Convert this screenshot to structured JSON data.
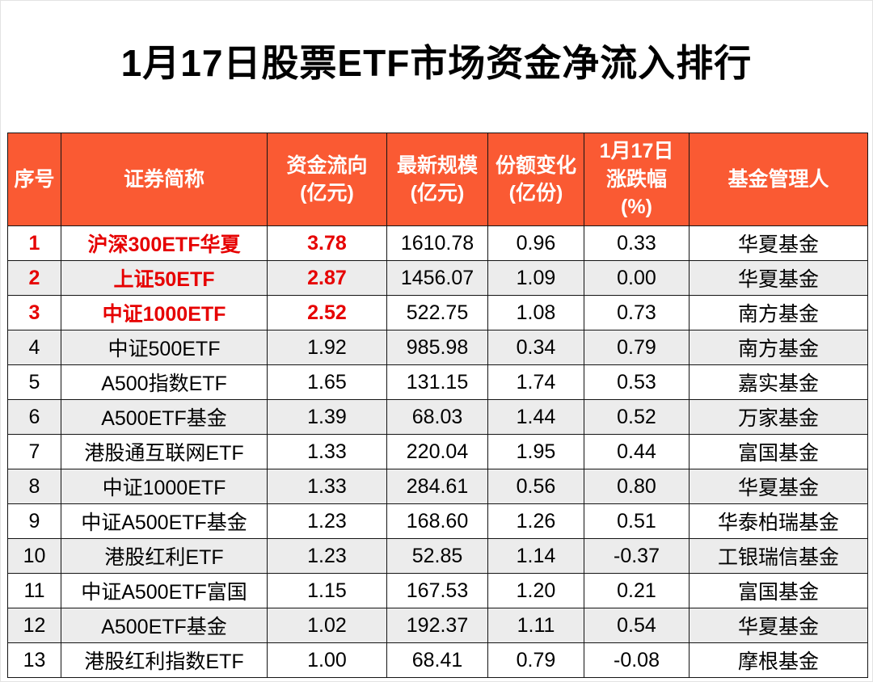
{
  "colors": {
    "header_bg": "#fa5a33",
    "header_text": "#ffffff",
    "highlight_text": "#e60000",
    "alt_row_bg": "#ececec",
    "title_text": "#000000"
  },
  "chart_data": {
    "type": "table",
    "title": "1月17日股票ETF市场资金净流入排行",
    "columns": [
      "序号",
      "证券简称",
      "资金流向\n(亿元)",
      "最新规模\n(亿元)",
      "份额变化\n(亿份)",
      "1月17日\n涨跌幅\n(%)",
      "基金管理人"
    ],
    "rows": [
      {
        "highlight": true,
        "values": [
          "1",
          "沪深300ETF华夏",
          "3.78",
          "1610.78",
          "0.96",
          "0.33",
          "华夏基金"
        ]
      },
      {
        "highlight": true,
        "values": [
          "2",
          "上证50ETF",
          "2.87",
          "1456.07",
          "1.09",
          "0.00",
          "华夏基金"
        ]
      },
      {
        "highlight": true,
        "values": [
          "3",
          "中证1000ETF",
          "2.52",
          "522.75",
          "1.08",
          "0.73",
          "南方基金"
        ]
      },
      {
        "highlight": false,
        "values": [
          "4",
          "中证500ETF",
          "1.92",
          "985.98",
          "0.34",
          "0.79",
          "南方基金"
        ]
      },
      {
        "highlight": false,
        "values": [
          "5",
          "A500指数ETF",
          "1.65",
          "131.15",
          "1.74",
          "0.53",
          "嘉实基金"
        ]
      },
      {
        "highlight": false,
        "values": [
          "6",
          "A500ETF基金",
          "1.39",
          "68.03",
          "1.44",
          "0.52",
          "万家基金"
        ]
      },
      {
        "highlight": false,
        "values": [
          "7",
          "港股通互联网ETF",
          "1.33",
          "220.04",
          "1.95",
          "0.44",
          "富国基金"
        ]
      },
      {
        "highlight": false,
        "values": [
          "8",
          "中证1000ETF",
          "1.33",
          "284.61",
          "0.56",
          "0.80",
          "华夏基金"
        ]
      },
      {
        "highlight": false,
        "values": [
          "9",
          "中证A500ETF基金",
          "1.23",
          "168.60",
          "1.26",
          "0.51",
          "华泰柏瑞基金"
        ]
      },
      {
        "highlight": false,
        "values": [
          "10",
          "港股红利ETF",
          "1.23",
          "52.85",
          "1.14",
          "-0.37",
          "工银瑞信基金"
        ]
      },
      {
        "highlight": false,
        "values": [
          "11",
          "中证A500ETF富国",
          "1.15",
          "167.53",
          "1.20",
          "0.21",
          "富国基金"
        ]
      },
      {
        "highlight": false,
        "values": [
          "12",
          "A500ETF基金",
          "1.02",
          "192.37",
          "1.11",
          "0.54",
          "华夏基金"
        ]
      },
      {
        "highlight": false,
        "values": [
          "13",
          "港股红利指数ETF",
          "1.00",
          "68.41",
          "0.79",
          "-0.08",
          "摩根基金"
        ]
      }
    ]
  }
}
